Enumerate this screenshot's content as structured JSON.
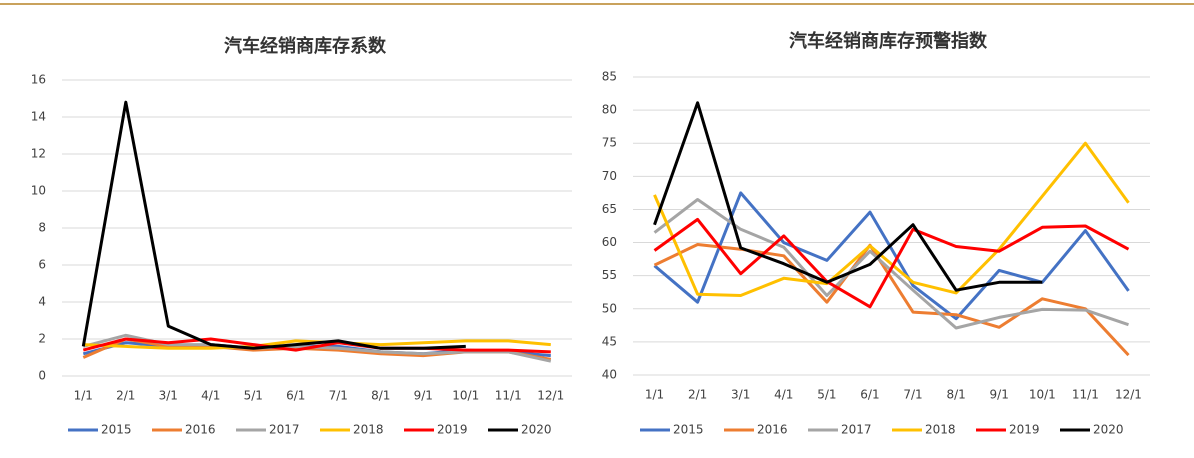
{
  "chart_data": [
    {
      "type": "line",
      "title": "汽车经销商库存系数",
      "categories": [
        "1/1",
        "2/1",
        "3/1",
        "4/1",
        "5/1",
        "6/1",
        "7/1",
        "8/1",
        "9/1",
        "10/1",
        "11/1",
        "12/1"
      ],
      "ylim": [
        0,
        16
      ],
      "yticks": [
        0,
        2,
        4,
        6,
        8,
        10,
        12,
        14,
        16
      ],
      "grid": true,
      "legend": "bottom",
      "series": [
        {
          "name": "2015",
          "color": "#4472c4",
          "values": [
            1.2,
            1.8,
            1.6,
            1.7,
            1.5,
            1.6,
            1.6,
            1.3,
            1.2,
            1.4,
            1.3,
            1.1
          ]
        },
        {
          "name": "2016",
          "color": "#ed7d31",
          "values": [
            1.0,
            2.0,
            1.6,
            1.6,
            1.4,
            1.5,
            1.4,
            1.2,
            1.1,
            1.3,
            1.3,
            0.9
          ]
        },
        {
          "name": "2017",
          "color": "#a5a5a5",
          "values": [
            1.6,
            2.2,
            1.7,
            1.7,
            1.5,
            1.6,
            1.5,
            1.3,
            1.2,
            1.3,
            1.3,
            0.8
          ]
        },
        {
          "name": "2018",
          "color": "#ffc000",
          "values": [
            1.7,
            1.6,
            1.5,
            1.5,
            1.6,
            1.9,
            1.8,
            1.7,
            1.8,
            1.9,
            1.9,
            1.7
          ]
        },
        {
          "name": "2019",
          "color": "#ff0000",
          "values": [
            1.4,
            2.0,
            1.8,
            2.0,
            1.7,
            1.4,
            1.8,
            1.5,
            1.5,
            1.4,
            1.4,
            1.3
          ]
        },
        {
          "name": "2020",
          "color": "#000000",
          "values": [
            1.6,
            14.8,
            2.7,
            1.7,
            1.5,
            1.7,
            1.9,
            1.5,
            1.5,
            1.6,
            null,
            null
          ]
        }
      ]
    },
    {
      "type": "line",
      "title": "汽车经销商库存预警指数",
      "categories": [
        "1/1",
        "2/1",
        "3/1",
        "4/1",
        "5/1",
        "6/1",
        "7/1",
        "8/1",
        "9/1",
        "10/1",
        "11/1",
        "12/1"
      ],
      "ylim": [
        40,
        85
      ],
      "yticks": [
        40,
        45,
        50,
        55,
        60,
        65,
        70,
        75,
        80,
        85
      ],
      "grid": true,
      "legend": "bottom",
      "series": [
        {
          "name": "2015",
          "color": "#4472c4",
          "values": [
            56.5,
            51,
            67.5,
            60,
            57.3,
            64.6,
            53.5,
            48.5,
            55.8,
            54,
            61.8,
            52.7
          ]
        },
        {
          "name": "2016",
          "color": "#ed7d31",
          "values": [
            56.6,
            59.7,
            59,
            58,
            51,
            59.6,
            49.5,
            49.1,
            47.2,
            51.5,
            50,
            43
          ]
        },
        {
          "name": "2017",
          "color": "#a5a5a5",
          "values": [
            61.5,
            66.5,
            62,
            59.3,
            52,
            58.7,
            52.8,
            47.1,
            48.7,
            49.9,
            49.8,
            47.6
          ]
        },
        {
          "name": "2018",
          "color": "#ffc000",
          "values": [
            67.2,
            52.2,
            52,
            54.6,
            53.8,
            59.5,
            54,
            52.4,
            59,
            67,
            75,
            66
          ]
        },
        {
          "name": "2019",
          "color": "#ff0000",
          "values": [
            58.8,
            63.5,
            55.3,
            61,
            54.1,
            50.3,
            62,
            59.4,
            58.7,
            62.3,
            62.5,
            59
          ]
        },
        {
          "name": "2020",
          "color": "#000000",
          "values": [
            62.7,
            81.1,
            59.2,
            56.8,
            54,
            56.7,
            62.7,
            52.8,
            54,
            54,
            null,
            null
          ]
        }
      ]
    }
  ]
}
